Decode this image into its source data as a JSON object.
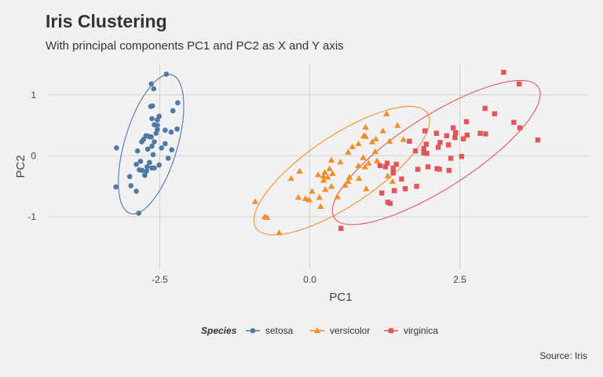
{
  "title": "Iris Clustering",
  "subtitle": "With principal components PC1 and PC2 as X and Y axis",
  "caption": "Source: Iris",
  "chart_data": {
    "type": "scatter",
    "xlabel": "PC1",
    "ylabel": "PC2",
    "xlim": [
      -4.35,
      4.65
    ],
    "ylim": [
      -1.85,
      1.5
    ],
    "xticks": [
      -2.5,
      0.0,
      2.5
    ],
    "xtick_labels": [
      "-2.5",
      "0.0",
      "2.5"
    ],
    "yticks": [
      -1,
      0,
      1
    ],
    "ytick_labels": [
      "-1",
      "0",
      "1"
    ],
    "grid": true,
    "legend": {
      "title": "Species",
      "placement": "bottom"
    },
    "ellipses": true,
    "series": [
      {
        "name": "setosa",
        "color": "#4e79a7",
        "marker": "circle",
        "points": [
          [
            -2.69,
            0.32
          ],
          [
            -2.71,
            -0.18
          ],
          [
            -2.89,
            -0.14
          ],
          [
            -2.75,
            -0.32
          ],
          [
            -2.73,
            0.33
          ],
          [
            -2.28,
            0.74
          ],
          [
            -2.82,
            -0.09
          ],
          [
            -2.63,
            0.16
          ],
          [
            -2.89,
            -0.58
          ],
          [
            -2.67,
            -0.11
          ],
          [
            -2.51,
            0.65
          ],
          [
            -2.61,
            0.02
          ],
          [
            -2.79,
            -0.24
          ],
          [
            -3.23,
            -0.51
          ],
          [
            -2.64,
            1.18
          ],
          [
            -2.39,
            1.34
          ],
          [
            -2.62,
            0.82
          ],
          [
            -2.65,
            0.31
          ],
          [
            -2.2,
            0.87
          ],
          [
            -2.59,
            0.51
          ],
          [
            -2.31,
            0.39
          ],
          [
            -2.54,
            0.43
          ],
          [
            -3.22,
            0.13
          ],
          [
            -2.3,
            0.1
          ],
          [
            -2.36,
            -0.04
          ],
          [
            -2.51,
            -0.15
          ],
          [
            -2.47,
            0.13
          ],
          [
            -2.56,
            0.37
          ],
          [
            -2.64,
            0.31
          ],
          [
            -2.63,
            -0.2
          ],
          [
            -2.59,
            -0.2
          ],
          [
            -2.41,
            0.42
          ],
          [
            -2.65,
            0.81
          ],
          [
            -2.6,
            1.1
          ],
          [
            -2.67,
            -0.11
          ],
          [
            -2.87,
            0.08
          ],
          [
            -2.63,
            0.61
          ],
          [
            -2.8,
            0.23
          ],
          [
            -2.98,
            -0.49
          ],
          [
            -2.59,
            0.23
          ],
          [
            -2.77,
            0.27
          ],
          [
            -2.85,
            -0.94
          ],
          [
            -3.0,
            -0.34
          ],
          [
            -2.41,
            0.2
          ],
          [
            -2.21,
            0.44
          ],
          [
            -2.72,
            -0.25
          ],
          [
            -2.54,
            0.5
          ],
          [
            -2.84,
            -0.23
          ],
          [
            -2.54,
            0.59
          ],
          [
            -2.7,
            0.11
          ]
        ]
      },
      {
        "name": "versicolor",
        "color": "#f28e2b",
        "marker": "triangle",
        "points": [
          [
            1.28,
            0.69
          ],
          [
            0.93,
            0.32
          ],
          [
            1.46,
            0.5
          ],
          [
            0.18,
            -0.83
          ],
          [
            1.09,
            0.07
          ],
          [
            0.64,
            -0.42
          ],
          [
            1.1,
            0.28
          ],
          [
            -0.75,
            -1.0
          ],
          [
            1.04,
            0.23
          ],
          [
            -0.01,
            -0.72
          ],
          [
            -0.51,
            -1.26
          ],
          [
            0.51,
            -0.1
          ],
          [
            0.26,
            -0.55
          ],
          [
            0.98,
            -0.12
          ],
          [
            -0.17,
            -0.25
          ],
          [
            0.93,
            0.47
          ],
          [
            0.66,
            -0.35
          ],
          [
            0.23,
            -0.33
          ],
          [
            0.94,
            -0.54
          ],
          [
            0.04,
            -0.58
          ],
          [
            1.12,
            -0.08
          ],
          [
            0.36,
            -0.07
          ],
          [
            1.3,
            -0.33
          ],
          [
            0.92,
            -0.18
          ],
          [
            0.71,
            0.15
          ],
          [
            0.9,
            0.33
          ],
          [
            1.33,
            0.24
          ],
          [
            1.56,
            0.27
          ],
          [
            0.81,
            -0.16
          ],
          [
            -0.31,
            -0.37
          ],
          [
            -0.07,
            -0.7
          ],
          [
            -0.19,
            -0.68
          ],
          [
            0.14,
            -0.31
          ],
          [
            1.38,
            -0.42
          ],
          [
            0.59,
            -0.48
          ],
          [
            0.81,
            0.2
          ],
          [
            1.22,
            0.41
          ],
          [
            0.82,
            -0.37
          ],
          [
            0.25,
            -0.27
          ],
          [
            0.16,
            -0.68
          ],
          [
            0.46,
            -0.67
          ],
          [
            0.89,
            -0.03
          ],
          [
            0.23,
            -0.4
          ],
          [
            -0.71,
            -1.01
          ],
          [
            0.36,
            -0.5
          ],
          [
            0.33,
            -0.21
          ],
          [
            0.38,
            -0.29
          ],
          [
            0.64,
            0.06
          ],
          [
            -0.91,
            -0.75
          ],
          [
            0.3,
            -0.35
          ]
        ]
      },
      {
        "name": "virginica",
        "color": "#e15759",
        "marker": "square",
        "points": [
          [
            2.53,
            -0.01
          ],
          [
            1.41,
            -0.57
          ],
          [
            2.62,
            0.34
          ],
          [
            1.97,
            -0.18
          ],
          [
            2.35,
            -0.04
          ],
          [
            3.4,
            0.55
          ],
          [
            0.52,
            -1.19
          ],
          [
            2.93,
            0.36
          ],
          [
            2.32,
            -0.24
          ],
          [
            2.92,
            0.78
          ],
          [
            1.66,
            0.24
          ],
          [
            1.8,
            -0.22
          ],
          [
            2.17,
            0.22
          ],
          [
            1.34,
            -0.78
          ],
          [
            1.59,
            -0.54
          ],
          [
            1.9,
            0.12
          ],
          [
            1.95,
            0.04
          ],
          [
            3.49,
            1.18
          ],
          [
            3.8,
            0.26
          ],
          [
            1.3,
            -0.76
          ],
          [
            2.43,
            0.38
          ],
          [
            1.2,
            -0.61
          ],
          [
            3.5,
            0.46
          ],
          [
            1.39,
            -0.2
          ],
          [
            2.28,
            0.33
          ],
          [
            2.61,
            0.56
          ],
          [
            1.26,
            -0.18
          ],
          [
            1.29,
            -0.12
          ],
          [
            2.12,
            -0.21
          ],
          [
            2.39,
            0.46
          ],
          [
            2.84,
            0.37
          ],
          [
            3.23,
            1.37
          ],
          [
            2.16,
            -0.22
          ],
          [
            1.44,
            -0.14
          ],
          [
            1.78,
            -0.5
          ],
          [
            3.08,
            0.69
          ],
          [
            2.14,
            0.14
          ],
          [
            1.9,
            0.05
          ],
          [
            1.17,
            -0.16
          ],
          [
            2.11,
            0.37
          ],
          [
            2.31,
            0.18
          ],
          [
            1.92,
            0.41
          ],
          [
            1.41,
            -0.57
          ],
          [
            2.56,
            0.28
          ],
          [
            2.42,
            0.3
          ],
          [
            1.94,
            0.19
          ],
          [
            1.53,
            -0.38
          ],
          [
            1.76,
            0.08
          ],
          [
            1.9,
            0.12
          ],
          [
            1.39,
            -0.28
          ]
        ]
      }
    ]
  }
}
